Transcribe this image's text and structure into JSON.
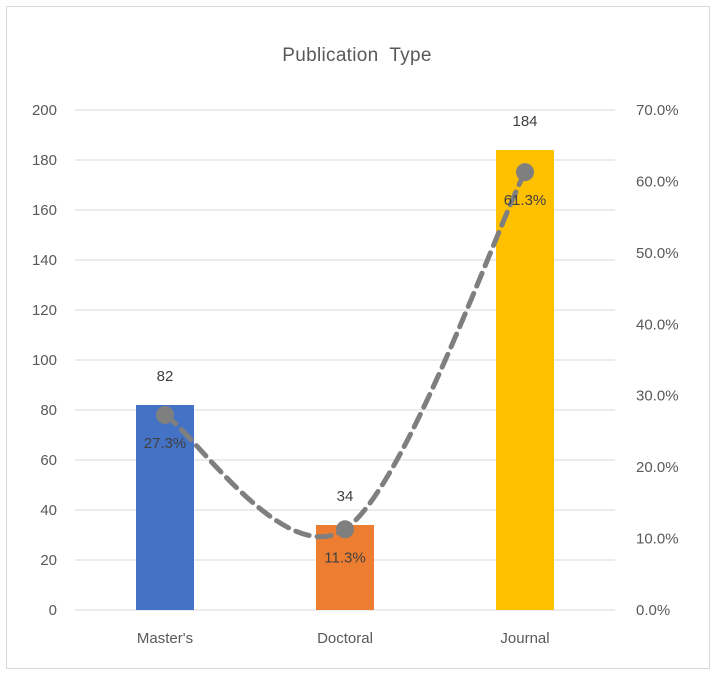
{
  "chart_data": {
    "type": "bar",
    "title": "Publication  Type",
    "categories": [
      "Master's",
      "Doctoral",
      "Journal"
    ],
    "series": [
      {
        "type": "bar",
        "values": [
          82,
          34,
          184
        ],
        "colors": [
          "#4472c4",
          "#ed7d31",
          "#ffc000"
        ],
        "data_labels": [
          "82",
          "34",
          "184"
        ]
      },
      {
        "type": "line",
        "axis": "secondary",
        "values": [
          27.3,
          11.3,
          61.3
        ],
        "color": "#7f7f7f",
        "style": "dashed-smooth",
        "data_labels": [
          "27.3%",
          "11.3%",
          "61.3%"
        ]
      }
    ],
    "y_axis": {
      "min": 0,
      "max": 200,
      "step": 20,
      "tick_labels": [
        "0",
        "20",
        "40",
        "60",
        "80",
        "100",
        "120",
        "140",
        "160",
        "180",
        "200"
      ]
    },
    "y2_axis": {
      "min": 0,
      "max": 70,
      "step": 10,
      "tick_labels": [
        "0.0%",
        "10.0%",
        "20.0%",
        "30.0%",
        "40.0%",
        "50.0%",
        "60.0%",
        "70.0%"
      ]
    },
    "grid": true,
    "legend": "none"
  }
}
